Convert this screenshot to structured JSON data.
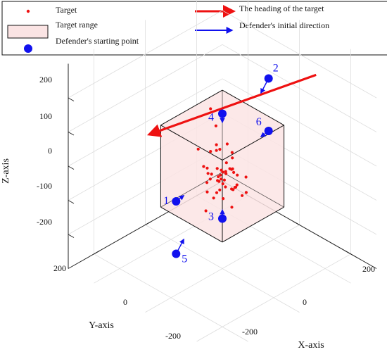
{
  "chart_data": {
    "type": "scatter",
    "projection": "3d",
    "title": "",
    "xlabel": "X-axis",
    "ylabel": "Y-axis",
    "zlabel": "Z-axis",
    "xlim": [
      -300,
      300
    ],
    "ylim": [
      -300,
      300
    ],
    "zlim": [
      -300,
      300
    ],
    "x_ticks": [
      "-200",
      "0",
      "200"
    ],
    "y_ticks": [
      "-200",
      "0",
      "200"
    ],
    "z_ticks": [
      "-200",
      "-100",
      "0",
      "100",
      "200"
    ],
    "grid": true,
    "legend": {
      "placement": "top",
      "entries": [
        "Target",
        "Target range",
        "Defender's starting point",
        "The heading of the target",
        "Defender's initial direction"
      ]
    },
    "colors": {
      "target": "#ee1111",
      "range_fill": "#fbe4e4",
      "heading": "#ee1111",
      "defender": "#1111ee",
      "box_edge": "#111111"
    },
    "target_range": {
      "x": [
        -120,
        120
      ],
      "y": [
        -120,
        120
      ],
      "z": [
        -120,
        120
      ]
    },
    "targets": [
      [
        -105,
        -59,
        98
      ],
      [
        7,
        101,
        96
      ],
      [
        -51,
        -26,
        85
      ],
      [
        -17,
        6,
        58
      ],
      [
        -15,
        -53,
        11
      ],
      [
        44,
        86,
        32
      ],
      [
        59,
        69,
        104
      ],
      [
        -70,
        -24,
        3
      ],
      [
        -10,
        -49,
        -1
      ],
      [
        -70,
        -47,
        -4
      ],
      [
        6,
        -2,
        -39
      ],
      [
        32,
        88,
        30
      ],
      [
        55,
        102,
        29
      ],
      [
        96,
        59,
        -54
      ],
      [
        -48,
        -84,
        -66
      ],
      [
        8,
        -34,
        -80
      ],
      [
        -67,
        6,
        -27
      ],
      [
        -30,
        -33,
        -122
      ],
      [
        -85,
        -25,
        -95
      ],
      [
        -56,
        3,
        -98
      ],
      [
        -7,
        -3,
        -16
      ],
      [
        -81,
        -110,
        -89
      ],
      [
        -25,
        39,
        -125
      ],
      [
        76,
        -17,
        -52
      ],
      [
        75,
        88,
        25
      ],
      [
        -85,
        -87,
        -91
      ],
      [
        66,
        30,
        -26
      ],
      [
        16,
        21,
        -22
      ],
      [
        -2,
        5,
        -25
      ],
      [
        -21,
        -40,
        39
      ],
      [
        1,
        -15,
        4
      ],
      [
        -40,
        -98,
        -85
      ],
      [
        40,
        -4,
        -3
      ],
      [
        -71,
        -61,
        -126
      ],
      [
        32,
        52,
        29
      ],
      [
        47,
        66,
        6
      ],
      [
        52,
        74,
        -24
      ],
      [
        15,
        49,
        -66
      ],
      [
        94,
        37,
        1
      ],
      [
        -25,
        34,
        -2
      ],
      [
        10,
        8,
        -44
      ],
      [
        -48,
        -32,
        -65
      ],
      [
        -60,
        -112,
        -135
      ],
      [
        -8,
        -100,
        -78
      ],
      [
        35,
        -14,
        -53
      ],
      [
        8,
        -6,
        -21
      ],
      [
        21,
        9,
        -48
      ],
      [
        -22,
        -35,
        -40
      ],
      [
        -49,
        -89,
        -67
      ],
      [
        -7,
        -84,
        -125
      ]
    ],
    "heading": {
      "from": [
        45,
        -320,
        150
      ],
      "to": [
        -175,
        110,
        65
      ]
    },
    "defenders": [
      {
        "label": "1",
        "point": [
          -180,
          0,
          -180
        ],
        "direction": [
          1,
          0,
          1
        ]
      },
      {
        "label": "2",
        "point": [
          0,
          -180,
          180
        ],
        "direction": [
          0,
          1,
          -1
        ]
      },
      {
        "label": "3",
        "point": [
          180,
          180,
          0
        ],
        "direction": [
          -1,
          -1,
          0
        ]
      },
      {
        "label": "4",
        "point": [
          -180,
          -180,
          0
        ],
        "direction": [
          1,
          1,
          0
        ]
      },
      {
        "label": "5",
        "point": [
          0,
          180,
          -180
        ],
        "direction": [
          0,
          -1,
          1
        ]
      },
      {
        "label": "6",
        "point": [
          180,
          0,
          180
        ],
        "direction": [
          -1,
          0,
          -1
        ]
      }
    ]
  }
}
